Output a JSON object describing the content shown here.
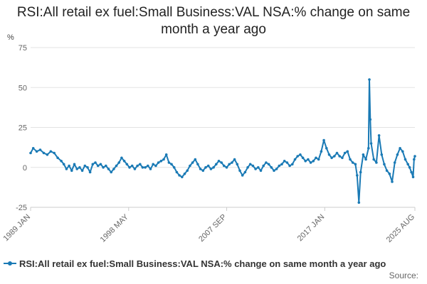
{
  "chart_data": {
    "type": "line",
    "title": "RSI:All retail ex fuel:Small Business:VAL NSA:% change on same month a year ago",
    "ylabel": "%",
    "xlabel": "",
    "ylim": [
      -25,
      75
    ],
    "yticks": [
      -25,
      0,
      25,
      50,
      75
    ],
    "xlim": [
      "1989-01",
      "2025-08"
    ],
    "xtick_labels": [
      "1989 JAN",
      "1998 MAY",
      "2007 SEP",
      "2017 JAN",
      "2025 AUG"
    ],
    "xtick_dates": [
      "1989-01",
      "1998-05",
      "2007-09",
      "2017-01",
      "2025-08"
    ],
    "grid": "horizontal",
    "legend_position": "bottom",
    "source_label": "Source:",
    "color": "#1a7ab5",
    "series": [
      {
        "name": "RSI:All retail ex fuel:Small Business:VAL NSA:% change on same month a year ago",
        "points": [
          [
            "1989-01",
            9
          ],
          [
            "1989-04",
            12
          ],
          [
            "1989-08",
            10
          ],
          [
            "1989-12",
            11
          ],
          [
            "1990-04",
            9
          ],
          [
            "1990-08",
            8
          ],
          [
            "1990-12",
            10
          ],
          [
            "1991-04",
            9
          ],
          [
            "1991-08",
            6
          ],
          [
            "1991-12",
            4
          ],
          [
            "1992-03",
            2
          ],
          [
            "1992-06",
            -1
          ],
          [
            "1992-09",
            1
          ],
          [
            "1992-12",
            -2
          ],
          [
            "1993-03",
            2
          ],
          [
            "1993-06",
            -1
          ],
          [
            "1993-09",
            0
          ],
          [
            "1993-12",
            -2
          ],
          [
            "1994-03",
            1
          ],
          [
            "1994-06",
            0
          ],
          [
            "1994-09",
            -3
          ],
          [
            "1994-12",
            2
          ],
          [
            "1995-03",
            3
          ],
          [
            "1995-06",
            1
          ],
          [
            "1995-09",
            2
          ],
          [
            "1995-12",
            0
          ],
          [
            "1996-03",
            1
          ],
          [
            "1996-06",
            -1
          ],
          [
            "1996-09",
            -3
          ],
          [
            "1996-12",
            -1
          ],
          [
            "1997-03",
            1
          ],
          [
            "1997-06",
            3
          ],
          [
            "1997-09",
            6
          ],
          [
            "1997-12",
            4
          ],
          [
            "1998-03",
            2
          ],
          [
            "1998-06",
            0
          ],
          [
            "1998-09",
            1
          ],
          [
            "1998-12",
            -1
          ],
          [
            "1999-03",
            1
          ],
          [
            "1999-06",
            2
          ],
          [
            "1999-09",
            0
          ],
          [
            "1999-12",
            0
          ],
          [
            "2000-03",
            1
          ],
          [
            "2000-06",
            -1
          ],
          [
            "2000-09",
            2
          ],
          [
            "2000-12",
            1
          ],
          [
            "2001-03",
            3
          ],
          [
            "2001-06",
            4
          ],
          [
            "2001-09",
            5
          ],
          [
            "2001-12",
            8
          ],
          [
            "2002-03",
            3
          ],
          [
            "2002-06",
            2
          ],
          [
            "2002-09",
            0
          ],
          [
            "2002-12",
            -3
          ],
          [
            "2003-03",
            -5
          ],
          [
            "2003-06",
            -6
          ],
          [
            "2003-09",
            -4
          ],
          [
            "2003-12",
            -2
          ],
          [
            "2004-03",
            1
          ],
          [
            "2004-06",
            3
          ],
          [
            "2004-09",
            5
          ],
          [
            "2004-12",
            2
          ],
          [
            "2005-03",
            -1
          ],
          [
            "2005-06",
            -2
          ],
          [
            "2005-09",
            0
          ],
          [
            "2005-12",
            1
          ],
          [
            "2006-03",
            -1
          ],
          [
            "2006-06",
            0
          ],
          [
            "2006-09",
            2
          ],
          [
            "2006-12",
            4
          ],
          [
            "2007-03",
            3
          ],
          [
            "2007-06",
            1
          ],
          [
            "2007-09",
            0
          ],
          [
            "2007-12",
            2
          ],
          [
            "2008-03",
            3
          ],
          [
            "2008-06",
            5
          ],
          [
            "2008-09",
            2
          ],
          [
            "2008-12",
            -2
          ],
          [
            "2009-03",
            -5
          ],
          [
            "2009-06",
            -3
          ],
          [
            "2009-09",
            0
          ],
          [
            "2009-12",
            2
          ],
          [
            "2010-03",
            1
          ],
          [
            "2010-06",
            -1
          ],
          [
            "2010-09",
            0
          ],
          [
            "2010-12",
            -2
          ],
          [
            "2011-03",
            1
          ],
          [
            "2011-06",
            3
          ],
          [
            "2011-09",
            2
          ],
          [
            "2011-12",
            0
          ],
          [
            "2012-03",
            -2
          ],
          [
            "2012-06",
            -1
          ],
          [
            "2012-09",
            1
          ],
          [
            "2012-12",
            2
          ],
          [
            "2013-03",
            4
          ],
          [
            "2013-06",
            3
          ],
          [
            "2013-09",
            1
          ],
          [
            "2013-12",
            2
          ],
          [
            "2014-03",
            5
          ],
          [
            "2014-06",
            7
          ],
          [
            "2014-09",
            8
          ],
          [
            "2014-12",
            6
          ],
          [
            "2015-03",
            4
          ],
          [
            "2015-06",
            5
          ],
          [
            "2015-09",
            3
          ],
          [
            "2015-12",
            4
          ],
          [
            "2016-03",
            6
          ],
          [
            "2016-06",
            5
          ],
          [
            "2016-09",
            10
          ],
          [
            "2016-12",
            17
          ],
          [
            "2017-03",
            12
          ],
          [
            "2017-06",
            8
          ],
          [
            "2017-09",
            6
          ],
          [
            "2017-12",
            7
          ],
          [
            "2018-03",
            9
          ],
          [
            "2018-06",
            7
          ],
          [
            "2018-09",
            6
          ],
          [
            "2018-12",
            9
          ],
          [
            "2019-03",
            10
          ],
          [
            "2019-06",
            5
          ],
          [
            "2019-09",
            3
          ],
          [
            "2019-12",
            2
          ],
          [
            "2020-02",
            -5
          ],
          [
            "2020-04",
            -22
          ],
          [
            "2020-06",
            -3
          ],
          [
            "2020-09",
            8
          ],
          [
            "2020-12",
            5
          ],
          [
            "2021-03",
            12
          ],
          [
            "2021-04",
            55
          ],
          [
            "2021-05",
            30
          ],
          [
            "2021-06",
            15
          ],
          [
            "2021-09",
            5
          ],
          [
            "2021-12",
            3
          ],
          [
            "2022-03",
            20
          ],
          [
            "2022-06",
            8
          ],
          [
            "2022-09",
            2
          ],
          [
            "2022-12",
            -2
          ],
          [
            "2023-03",
            -4
          ],
          [
            "2023-06",
            -9
          ],
          [
            "2023-09",
            3
          ],
          [
            "2023-12",
            8
          ],
          [
            "2024-03",
            12
          ],
          [
            "2024-06",
            10
          ],
          [
            "2024-09",
            5
          ],
          [
            "2024-12",
            2
          ],
          [
            "2025-02",
            0
          ],
          [
            "2025-04",
            -3
          ],
          [
            "2025-06",
            -6
          ],
          [
            "2025-07",
            5
          ],
          [
            "2025-08",
            7
          ]
        ]
      }
    ]
  }
}
